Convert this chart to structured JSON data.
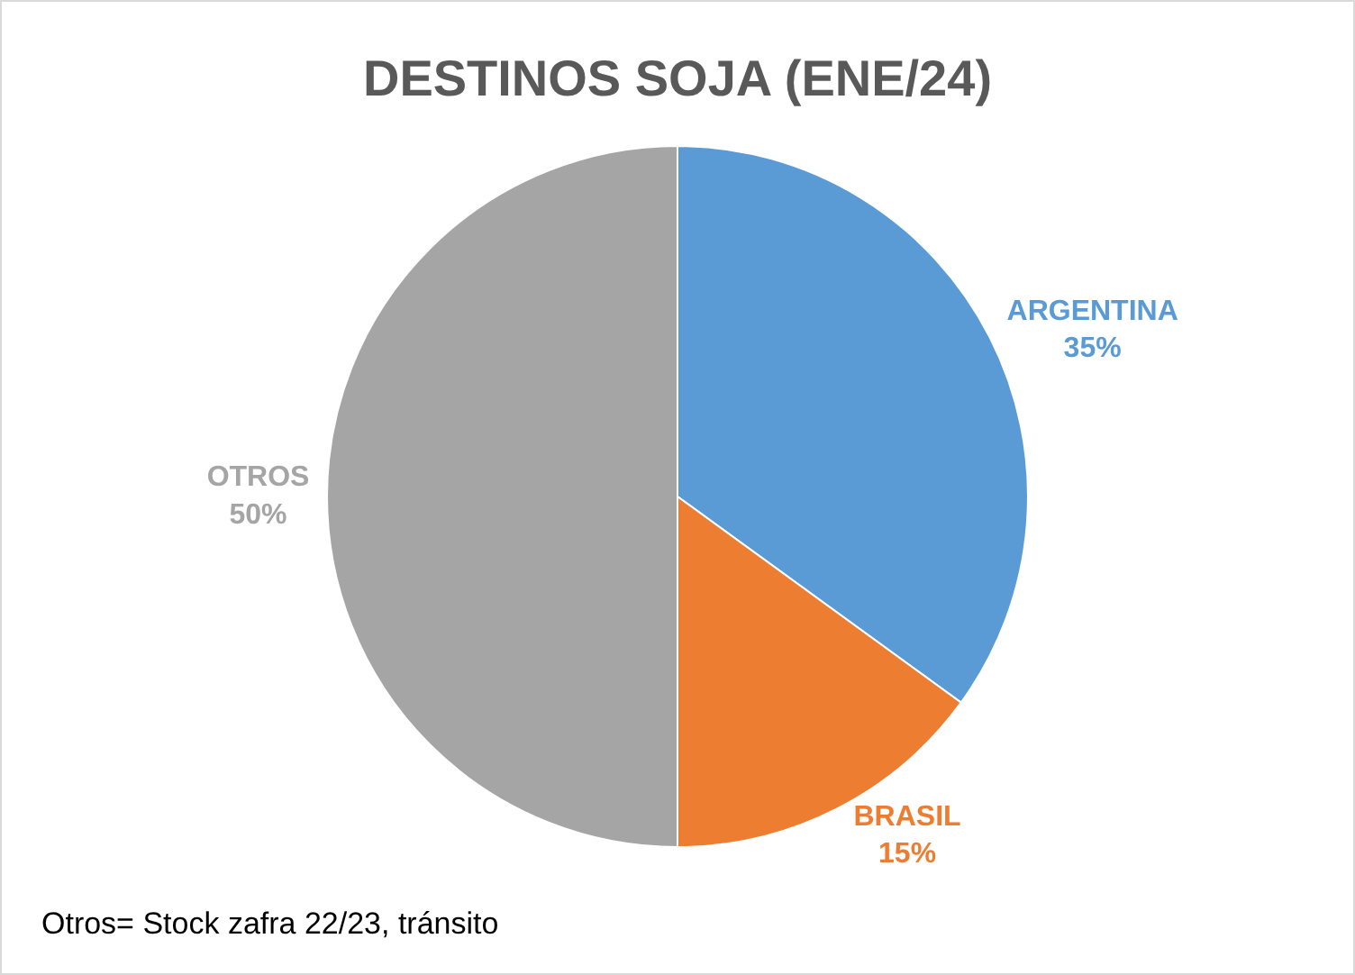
{
  "chart_data": {
    "type": "pie",
    "title": "DESTINOS SOJA (ENE/24)",
    "categories": [
      "ARGENTINA",
      "BRASIL",
      "OTROS"
    ],
    "values": [
      35,
      15,
      50
    ],
    "value_labels": [
      "35%",
      "15%",
      "50%"
    ],
    "colors": [
      "#5b9bd5",
      "#ed7d31",
      "#a5a5a5"
    ],
    "legend": false,
    "annotations": [
      "Otros= Stock zafra 22/23, tránsito"
    ]
  }
}
